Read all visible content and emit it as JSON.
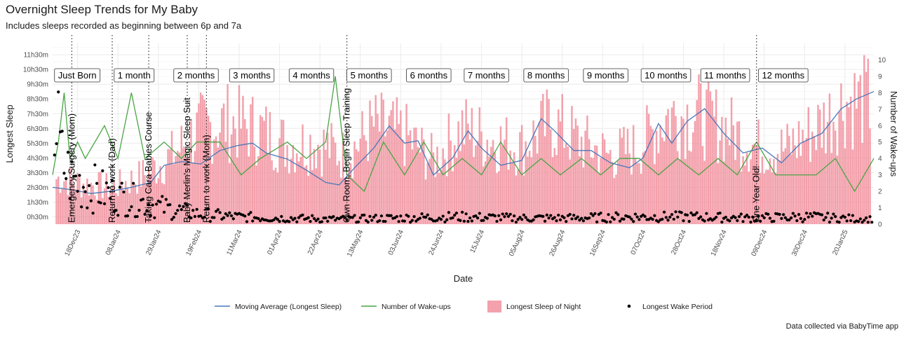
{
  "header": {
    "title": "Overnight Sleep Trends for My Baby",
    "subtitle": "Includes sleeps recorded as beginning between 6p and 7a",
    "caption": "Data collected via BabyTime app"
  },
  "colors": {
    "bars": "#f08a97",
    "moving_average": "#4a78b8",
    "wakeups": "#4aa445",
    "points": "#000000"
  },
  "chart_data": {
    "type": "bar",
    "title": "Overnight Sleep Trends for My Baby",
    "subtitle": "Includes sleeps recorded as beginning between 6p and 7a",
    "xlabel": "Date",
    "ylabel": "Longest Sleep",
    "y2label": "Number of Wake-ups",
    "x_start": "2023-12-05",
    "x_end": "2025-02-04",
    "ylim_minutes": [
      0,
      736
    ],
    "y2lim": [
      0,
      11
    ],
    "y_ticks": [
      "0h30m",
      "1h30m",
      "2h30m",
      "3h30m",
      "4h30m",
      "5h30m",
      "6h30m",
      "7h30m",
      "8h30m",
      "9h30m",
      "10h30m",
      "11h30m"
    ],
    "y2_ticks": [
      "0",
      "1",
      "2",
      "3",
      "4",
      "5",
      "6",
      "7",
      "8",
      "9",
      "10"
    ],
    "x_ticks": [
      {
        "date": "2023-12-18",
        "label": "18Dec23"
      },
      {
        "date": "2024-01-08",
        "label": "08Jan24"
      },
      {
        "date": "2024-01-29",
        "label": "29Jan24"
      },
      {
        "date": "2024-02-19",
        "label": "19Feb24"
      },
      {
        "date": "2024-03-11",
        "label": "11Mar24"
      },
      {
        "date": "2024-04-01",
        "label": "01Apr24"
      },
      {
        "date": "2024-04-22",
        "label": "22Apr24"
      },
      {
        "date": "2024-05-13",
        "label": "13May24"
      },
      {
        "date": "2024-06-03",
        "label": "03Jun24"
      },
      {
        "date": "2024-06-24",
        "label": "24Jun24"
      },
      {
        "date": "2024-07-15",
        "label": "15Jul24"
      },
      {
        "date": "2024-08-05",
        "label": "05Aug24"
      },
      {
        "date": "2024-08-26",
        "label": "26Aug24"
      },
      {
        "date": "2024-09-16",
        "label": "16Sep24"
      },
      {
        "date": "2024-10-07",
        "label": "07Oct24"
      },
      {
        "date": "2024-10-28",
        "label": "28Oct24"
      },
      {
        "date": "2024-11-18",
        "label": "18Nov24"
      },
      {
        "date": "2024-12-09",
        "label": "09Dec24"
      },
      {
        "date": "2024-12-30",
        "label": "30Dec24"
      },
      {
        "date": "2025-01-20",
        "label": "20Jan25"
      }
    ],
    "month_labels": [
      {
        "date": "2023-12-06",
        "label": "Just Born"
      },
      {
        "date": "2024-01-06",
        "label": "1 month"
      },
      {
        "date": "2024-02-06",
        "label": "2 months"
      },
      {
        "date": "2024-03-06",
        "label": "3 months"
      },
      {
        "date": "2024-04-06",
        "label": "4 months"
      },
      {
        "date": "2024-05-06",
        "label": "5 months"
      },
      {
        "date": "2024-06-06",
        "label": "6 months"
      },
      {
        "date": "2024-07-06",
        "label": "7 months"
      },
      {
        "date": "2024-08-06",
        "label": "8 months"
      },
      {
        "date": "2024-09-06",
        "label": "9 months"
      },
      {
        "date": "2024-10-06",
        "label": "10 months"
      },
      {
        "date": "2024-11-06",
        "label": "11 months"
      },
      {
        "date": "2024-12-06",
        "label": "12 months"
      }
    ],
    "events": [
      {
        "date": "2023-12-15",
        "label": "Emergency Surgery (Mom)"
      },
      {
        "date": "2024-01-05",
        "label": "Return to work (Dad)"
      },
      {
        "date": "2024-01-24",
        "label": "Taking Cara Babies Course"
      },
      {
        "date": "2024-02-13",
        "label": "Baby Merlin's Magic Sleep Suit"
      },
      {
        "date": "2024-02-23",
        "label": "Return to work (Mom)"
      },
      {
        "date": "2024-05-06",
        "label": "Own Room, Begin Sleep Training"
      },
      {
        "date": "2024-12-05",
        "label": "One Year Old!"
      }
    ],
    "series": [
      {
        "name": "Moving Average (Longest Sleep)",
        "kind": "line",
        "axis": "left",
        "points": [
          [
            "2023-12-05",
            150
          ],
          [
            "2023-12-15",
            140
          ],
          [
            "2023-12-25",
            125
          ],
          [
            "2024-01-05",
            135
          ],
          [
            "2024-01-15",
            150
          ],
          [
            "2024-01-25",
            170
          ],
          [
            "2024-02-01",
            240
          ],
          [
            "2024-02-10",
            255
          ],
          [
            "2024-02-20",
            245
          ],
          [
            "2024-03-01",
            300
          ],
          [
            "2024-03-10",
            320
          ],
          [
            "2024-03-18",
            330
          ],
          [
            "2024-03-25",
            290
          ],
          [
            "2024-04-05",
            265
          ],
          [
            "2024-04-15",
            220
          ],
          [
            "2024-04-25",
            170
          ],
          [
            "2024-05-02",
            160
          ],
          [
            "2024-05-10",
            230
          ],
          [
            "2024-05-20",
            310
          ],
          [
            "2024-05-28",
            400
          ],
          [
            "2024-06-05",
            330
          ],
          [
            "2024-06-12",
            340
          ],
          [
            "2024-06-20",
            200
          ],
          [
            "2024-06-30",
            270
          ],
          [
            "2024-07-08",
            380
          ],
          [
            "2024-07-15",
            310
          ],
          [
            "2024-07-25",
            240
          ],
          [
            "2024-08-05",
            260
          ],
          [
            "2024-08-15",
            430
          ],
          [
            "2024-08-22",
            380
          ],
          [
            "2024-09-01",
            300
          ],
          [
            "2024-09-10",
            300
          ],
          [
            "2024-09-20",
            250
          ],
          [
            "2024-09-30",
            230
          ],
          [
            "2024-10-07",
            270
          ],
          [
            "2024-10-15",
            410
          ],
          [
            "2024-10-22",
            330
          ],
          [
            "2024-10-30",
            420
          ],
          [
            "2024-11-08",
            470
          ],
          [
            "2024-11-18",
            370
          ],
          [
            "2024-11-28",
            290
          ],
          [
            "2024-12-08",
            310
          ],
          [
            "2024-12-18",
            250
          ],
          [
            "2024-12-28",
            330
          ],
          [
            "2025-01-08",
            370
          ],
          [
            "2025-01-18",
            470
          ],
          [
            "2025-01-26",
            510
          ],
          [
            "2025-02-04",
            540
          ]
        ]
      },
      {
        "name": "Number of Wake-ups",
        "kind": "line",
        "axis": "right",
        "points": [
          [
            "2023-12-05",
            3
          ],
          [
            "2023-12-08",
            5
          ],
          [
            "2023-12-11",
            8
          ],
          [
            "2023-12-14",
            4
          ],
          [
            "2023-12-18",
            5
          ],
          [
            "2023-12-22",
            4
          ],
          [
            "2024-01-01",
            6
          ],
          [
            "2024-01-08",
            4
          ],
          [
            "2024-01-15",
            8
          ],
          [
            "2024-01-22",
            4
          ],
          [
            "2024-02-01",
            5
          ],
          [
            "2024-02-10",
            4
          ],
          [
            "2024-02-18",
            5
          ],
          [
            "2024-03-01",
            5
          ],
          [
            "2024-03-12",
            3
          ],
          [
            "2024-03-22",
            4
          ],
          [
            "2024-04-05",
            5
          ],
          [
            "2024-04-15",
            4
          ],
          [
            "2024-04-25",
            5
          ],
          [
            "2024-04-30",
            9
          ],
          [
            "2024-05-06",
            3
          ],
          [
            "2024-05-15",
            2
          ],
          [
            "2024-05-25",
            5
          ],
          [
            "2024-06-05",
            3
          ],
          [
            "2024-06-15",
            5
          ],
          [
            "2024-06-25",
            3
          ],
          [
            "2024-07-05",
            4
          ],
          [
            "2024-07-15",
            3
          ],
          [
            "2024-07-25",
            5
          ],
          [
            "2024-08-05",
            3
          ],
          [
            "2024-08-15",
            4
          ],
          [
            "2024-08-25",
            3
          ],
          [
            "2024-09-05",
            4
          ],
          [
            "2024-09-15",
            3
          ],
          [
            "2024-09-25",
            4
          ],
          [
            "2024-10-05",
            4
          ],
          [
            "2024-10-15",
            3
          ],
          [
            "2024-10-25",
            4
          ],
          [
            "2024-11-05",
            3
          ],
          [
            "2024-11-15",
            4
          ],
          [
            "2024-11-25",
            3
          ],
          [
            "2024-12-05",
            5
          ],
          [
            "2024-12-15",
            3
          ],
          [
            "2024-12-25",
            3
          ],
          [
            "2025-01-05",
            3
          ],
          [
            "2025-01-15",
            4
          ],
          [
            "2025-01-25",
            2
          ],
          [
            "2025-02-04",
            4
          ]
        ]
      },
      {
        "name": "Longest Sleep of Night",
        "kind": "bar",
        "axis": "left",
        "points": [
          [
            "2023-12-10",
            200
          ],
          [
            "2023-12-20",
            180
          ],
          [
            "2024-01-05",
            160
          ],
          [
            "2024-01-20",
            210
          ],
          [
            "2024-02-05",
            300
          ],
          [
            "2024-02-20",
            420
          ],
          [
            "2024-03-05",
            450
          ],
          [
            "2024-03-20",
            420
          ],
          [
            "2024-04-05",
            350
          ],
          [
            "2024-04-20",
            360
          ],
          [
            "2024-05-06",
            300
          ],
          [
            "2024-05-20",
            430
          ],
          [
            "2024-06-05",
            390
          ],
          [
            "2024-06-20",
            280
          ],
          [
            "2024-07-05",
            420
          ],
          [
            "2024-07-20",
            370
          ],
          [
            "2024-08-05",
            340
          ],
          [
            "2024-08-20",
            450
          ],
          [
            "2024-09-05",
            360
          ],
          [
            "2024-09-20",
            300
          ],
          [
            "2024-10-05",
            340
          ],
          [
            "2024-10-20",
            480
          ],
          [
            "2024-11-05",
            480
          ],
          [
            "2024-11-20",
            420
          ],
          [
            "2024-12-05",
            340
          ],
          [
            "2024-12-20",
            330
          ],
          [
            "2025-01-05",
            420
          ],
          [
            "2025-01-20",
            540
          ]
        ]
      },
      {
        "name": "Longest Wake Period",
        "kind": "scatter",
        "axis": "left",
        "points": [
          [
            "2023-12-07",
            390
          ],
          [
            "2023-12-10",
            250
          ],
          [
            "2023-12-15",
            180
          ],
          [
            "2023-12-25",
            150
          ],
          [
            "2024-01-05",
            120
          ],
          [
            "2024-01-20",
            90
          ],
          [
            "2024-02-05",
            60
          ],
          [
            "2024-02-20",
            40
          ],
          [
            "2024-03-10",
            30
          ],
          [
            "2024-04-01",
            25
          ],
          [
            "2024-05-01",
            20
          ],
          [
            "2024-06-01",
            25
          ],
          [
            "2024-07-01",
            30
          ],
          [
            "2024-08-01",
            25
          ],
          [
            "2024-09-01",
            25
          ],
          [
            "2024-10-01",
            30
          ],
          [
            "2024-11-01",
            30
          ],
          [
            "2024-12-01",
            25
          ],
          [
            "2025-01-01",
            30
          ],
          [
            "2025-02-01",
            20
          ]
        ]
      }
    ],
    "legend_position": "bottom",
    "grid": true
  }
}
